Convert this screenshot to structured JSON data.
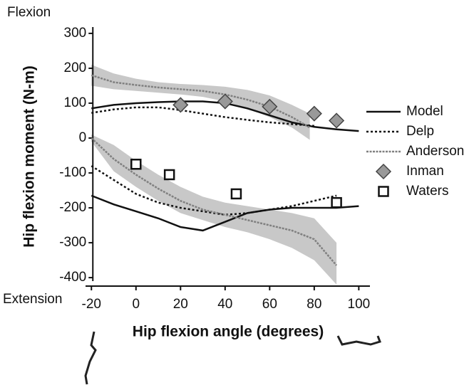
{
  "chart_data": {
    "type": "line",
    "y_label": "Hip flexion moment (N-m)",
    "x_label": "Hip flexion angle (degrees)",
    "top_annotation": "Flexion",
    "bottom_annotation": "Extension",
    "xlim": [
      -22,
      105
    ],
    "xticks": [
      -20,
      0,
      20,
      40,
      60,
      80,
      100
    ],
    "ylim": [
      -410,
      310
    ],
    "yticks": [
      -400,
      -300,
      -200,
      -100,
      0,
      100,
      200,
      300
    ],
    "series": [
      {
        "name": "Model",
        "kind": "line",
        "color": "#111111",
        "dash": "none",
        "x": [
          -20,
          -10,
          0,
          10,
          20,
          30,
          40,
          50,
          60,
          70,
          80,
          90,
          100,
          null,
          -20,
          -10,
          0,
          10,
          20,
          30,
          40,
          50,
          60,
          70,
          80,
          90,
          100
        ],
        "values": [
          85,
          95,
          100,
          103,
          105,
          105,
          100,
          85,
          65,
          45,
          32,
          25,
          20,
          null,
          -165,
          -190,
          -210,
          -230,
          -255,
          -265,
          -240,
          -215,
          -205,
          -200,
          -200,
          -200,
          -195
        ]
      },
      {
        "name": "Delp",
        "kind": "line",
        "color": "#111111",
        "dash": "3 3",
        "x": [
          -20,
          -10,
          0,
          10,
          20,
          30,
          40,
          50,
          60,
          70,
          80,
          null,
          -20,
          -10,
          0,
          10,
          20,
          30,
          40,
          50,
          60,
          70,
          80,
          90
        ],
        "values": [
          72,
          82,
          88,
          88,
          80,
          70,
          60,
          52,
          45,
          40,
          35,
          null,
          -80,
          -120,
          -160,
          -185,
          -200,
          -210,
          -220,
          -215,
          -205,
          -195,
          -180,
          -165
        ]
      },
      {
        "name": "Anderson",
        "kind": "line",
        "color": "#808080",
        "dash": "3 1.5",
        "band_color": "#c8c8c8",
        "x": [
          -20,
          -10,
          0,
          10,
          20,
          30,
          40,
          50,
          60,
          70,
          78,
          null,
          -20,
          -10,
          0,
          10,
          20,
          30,
          40,
          50,
          60,
          70,
          80,
          90
        ],
        "values": [
          180,
          160,
          152,
          145,
          140,
          135,
          125,
          110,
          90,
          60,
          30,
          null,
          0,
          -60,
          -105,
          -145,
          -180,
          -205,
          -220,
          -235,
          -250,
          -265,
          -290,
          -365
        ],
        "upper": [
          210,
          185,
          170,
          160,
          155,
          152,
          147,
          138,
          122,
          95,
          70,
          null,
          10,
          -20,
          -65,
          -105,
          -140,
          -168,
          -185,
          -195,
          -205,
          -215,
          -230,
          -300
        ],
        "lower": [
          150,
          140,
          135,
          130,
          125,
          118,
          105,
          85,
          60,
          30,
          -5,
          null,
          -10,
          -95,
          -140,
          -180,
          -215,
          -235,
          -255,
          -270,
          -290,
          -315,
          -350,
          -420
        ]
      },
      {
        "name": "Inman",
        "kind": "diamond",
        "color": "#999999",
        "x": [
          20,
          40,
          60,
          80,
          90
        ],
        "values": [
          95,
          105,
          90,
          70,
          50
        ]
      },
      {
        "name": "Waters",
        "kind": "square",
        "color": "#ffffff",
        "x": [
          0,
          15,
          45,
          90
        ],
        "values": [
          -75,
          -105,
          -160,
          -185
        ]
      }
    ]
  }
}
